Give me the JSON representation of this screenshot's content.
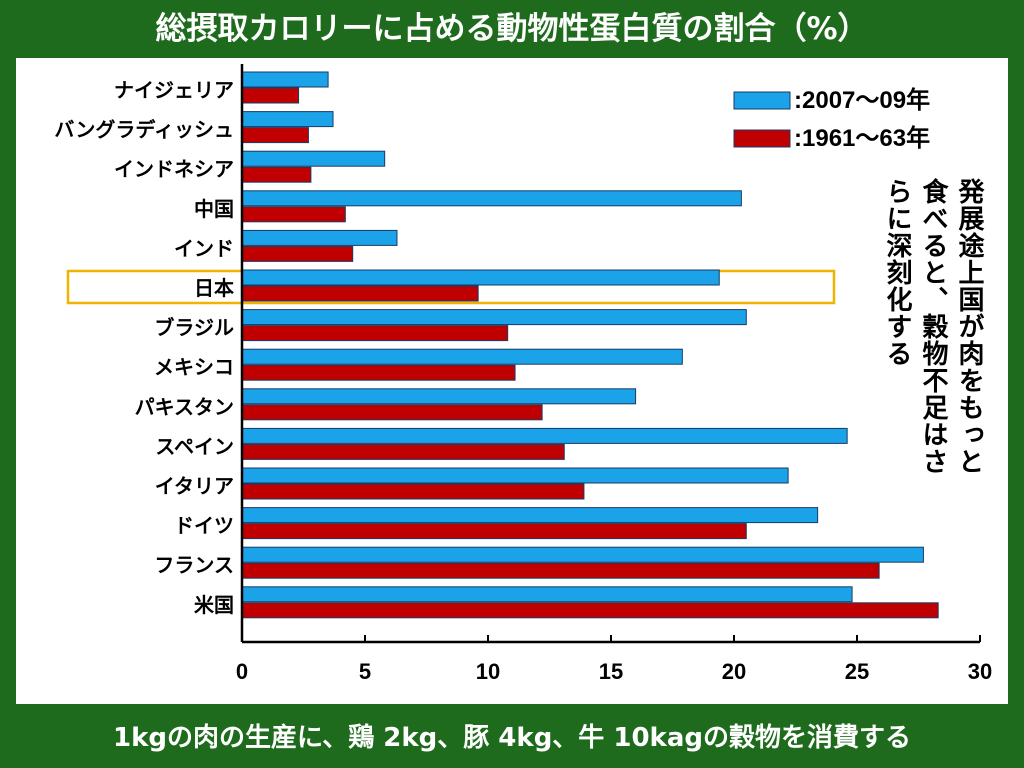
{
  "slide": {
    "title": "総摂取カロリーに占める動物性蛋白質の割合（%）",
    "footer": "1kgの肉の生産に、鶏 2kg、豚 4kg、牛 10kagの穀物を消費する",
    "background_color": "#1e6b1e",
    "highlight_color": "#f0b400"
  },
  "annotation": {
    "lines": [
      "発展途上国が肉をもっと",
      "食べると、穀物不足はさ",
      "らに深刻化する"
    ]
  },
  "chart_data": {
    "type": "bar",
    "orientation": "horizontal",
    "title": "総摂取カロリーに占める動物性蛋白質の割合（%）",
    "categories": [
      "ナイジェリア",
      "バングラディッシュ",
      "インドネシア",
      "中国",
      "インド",
      "日本",
      "ブラジル",
      "メキシコ",
      "パキスタン",
      "スペイン",
      "イタリア",
      "ドイツ",
      "フランス",
      "米国"
    ],
    "series": [
      {
        "name": ":2007～09年",
        "color": "#1aa3e8",
        "values": [
          3.5,
          3.7,
          5.8,
          20.3,
          6.3,
          19.4,
          20.5,
          17.9,
          16.0,
          24.6,
          22.2,
          23.4,
          27.7,
          24.8
        ]
      },
      {
        "name": ":1961～63年",
        "color": "#c00000",
        "values": [
          2.3,
          2.7,
          2.8,
          4.2,
          4.5,
          9.6,
          10.8,
          11.1,
          12.2,
          13.1,
          13.9,
          20.5,
          25.9,
          28.3
        ]
      }
    ],
    "xlim": [
      0,
      30
    ],
    "xticks": [
      "0",
      "5",
      "10",
      "15",
      "20",
      "25",
      "30"
    ],
    "highlight_category": "日本",
    "legend_position": "top-right",
    "grid": false
  }
}
